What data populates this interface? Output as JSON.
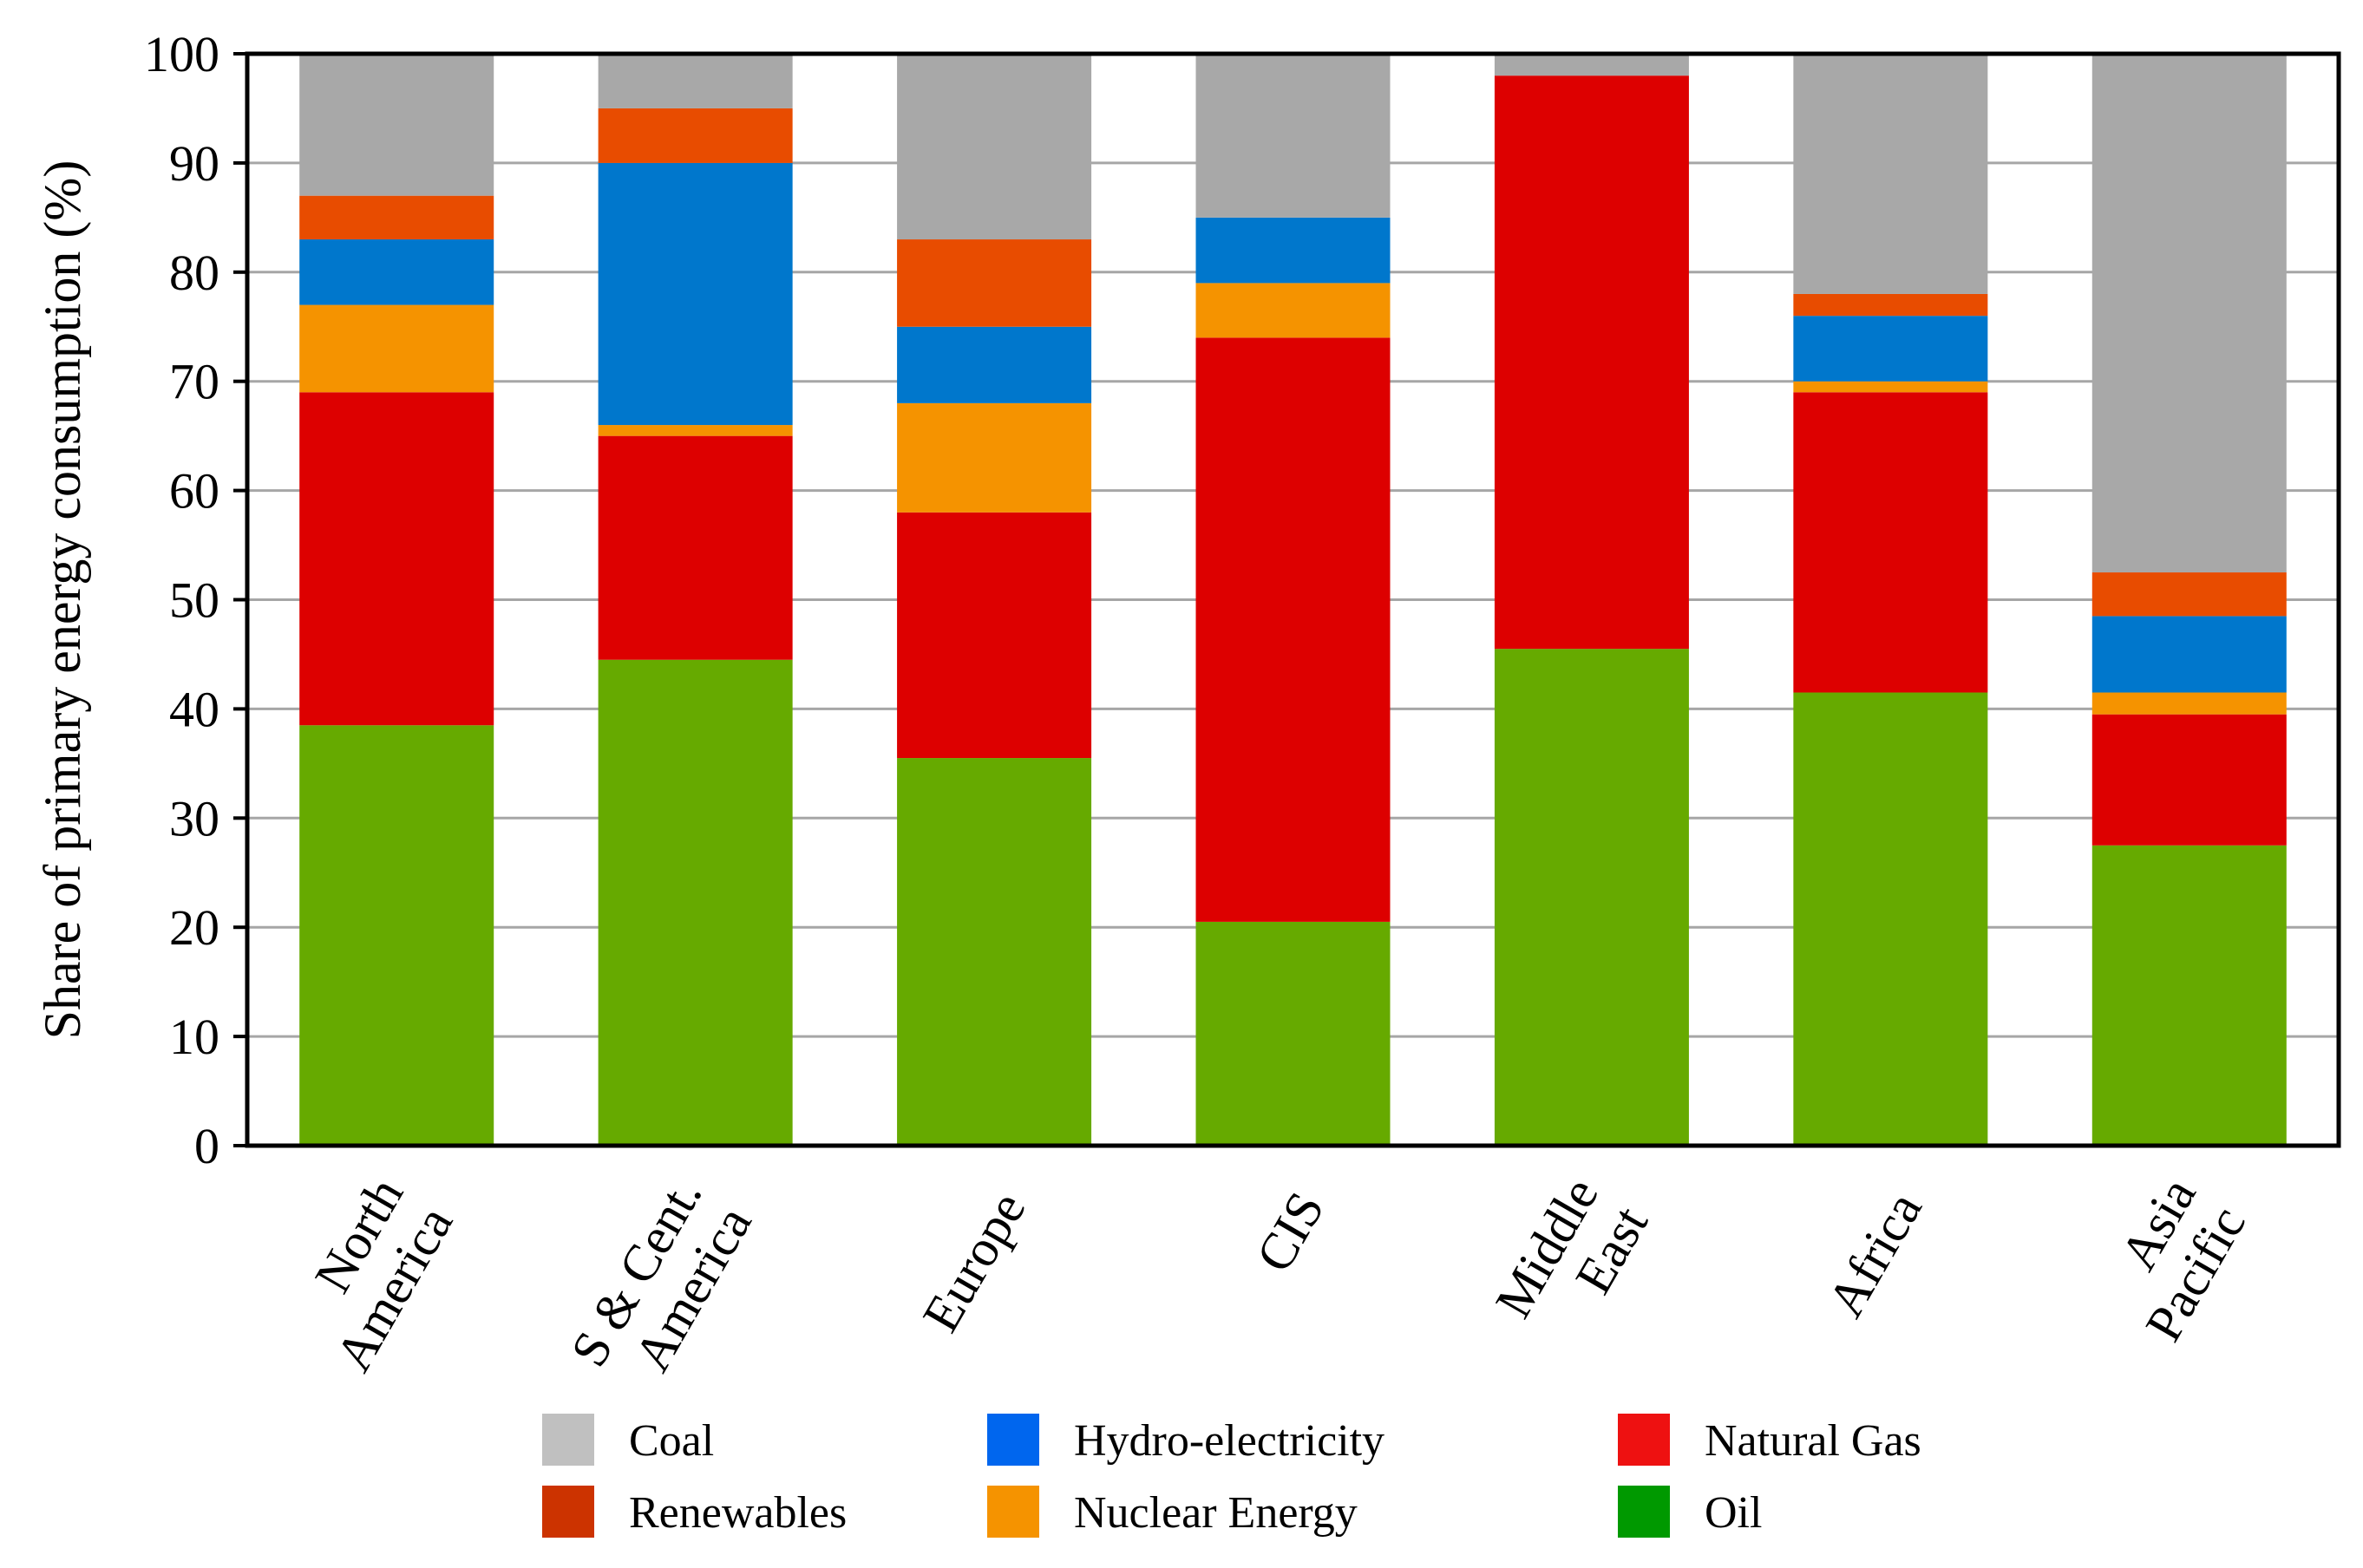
{
  "chart_data": {
    "type": "bar",
    "stacked": true,
    "title": "",
    "xlabel": "",
    "ylabel": "Share of primary energy consumption (%)",
    "ylim": [
      0,
      100
    ],
    "yticks": [
      0,
      10,
      20,
      30,
      40,
      50,
      60,
      70,
      80,
      90,
      100
    ],
    "grid": true,
    "categories": [
      [
        "North",
        "America"
      ],
      [
        "S & Cent.",
        "America"
      ],
      [
        "Europe"
      ],
      [
        "CIS"
      ],
      [
        "Middle",
        "East"
      ],
      [
        "Africa"
      ],
      [
        "Asia",
        "Pacific"
      ]
    ],
    "series": [
      {
        "name": "Oil",
        "color": "#66aa00",
        "legend_color": "#009900",
        "values": [
          38.5,
          44.5,
          35.5,
          20.5,
          45.5,
          41.5,
          27.5
        ]
      },
      {
        "name": "Natural Gas",
        "color": "#dd0000",
        "legend_color": "#ee1111",
        "values": [
          30.5,
          20.5,
          22.5,
          53.5,
          52.5,
          27.5,
          12.0
        ]
      },
      {
        "name": "Nuclear Energy",
        "color": "#f59300",
        "legend_color": "#f59300",
        "values": [
          8.0,
          1.0,
          10.0,
          5.0,
          0.0,
          1.0,
          2.0
        ]
      },
      {
        "name": "Hydro-electricity",
        "color": "#0077cc",
        "legend_color": "#0066ee",
        "values": [
          6.0,
          24.0,
          7.0,
          6.0,
          0.0,
          6.0,
          7.0
        ]
      },
      {
        "name": "Renewables",
        "color": "#e84c00",
        "legend_color": "#cc3300",
        "values": [
          4.0,
          5.0,
          8.0,
          0.0,
          0.0,
          2.0,
          4.0
        ]
      },
      {
        "name": "Coal",
        "color": "#a8a8a8",
        "legend_color": "#c0c0c0",
        "values": [
          13.0,
          5.0,
          17.0,
          15.0,
          2.0,
          22.0,
          47.5
        ]
      }
    ],
    "legend": {
      "placement": "bottom",
      "rows": [
        [
          "Coal",
          "Hydro-electricity",
          "Natural Gas"
        ],
        [
          "Renewables",
          "Nuclear Energy",
          "Oil"
        ]
      ]
    }
  }
}
